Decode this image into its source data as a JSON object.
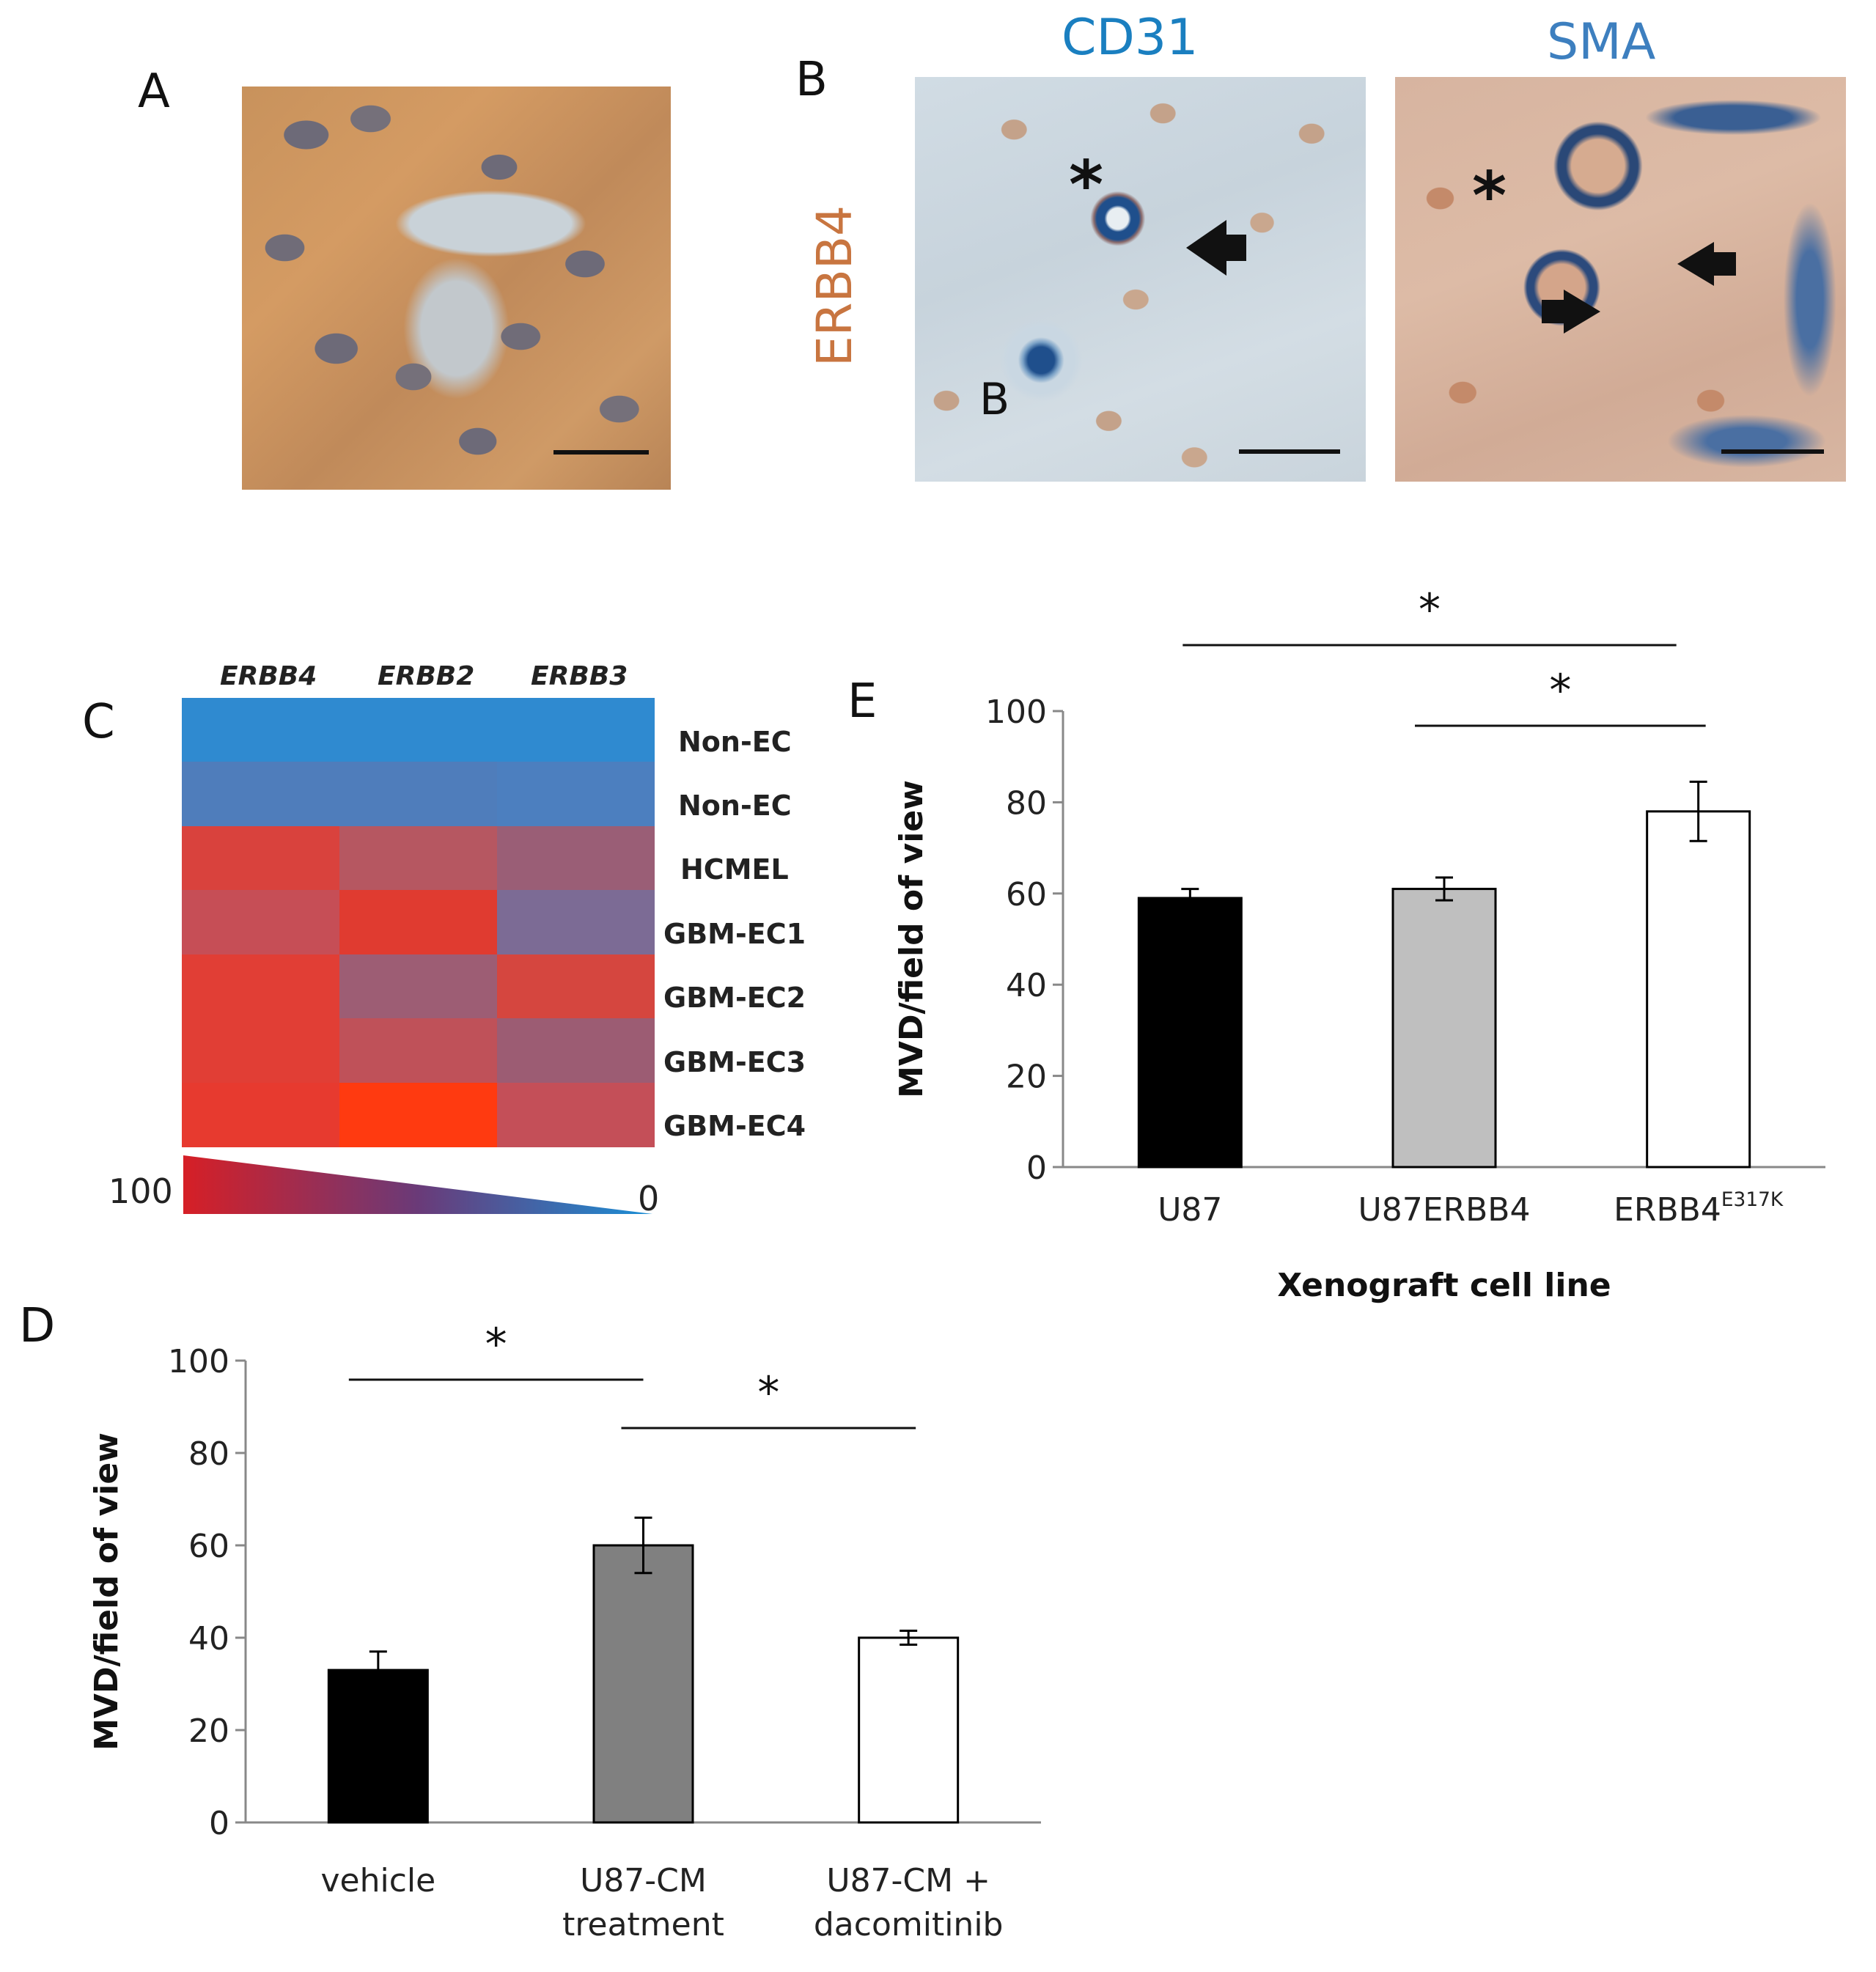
{
  "panels": {
    "a": {
      "letter": "A"
    },
    "b": {
      "letter": "B",
      "row_label": "ERBB4",
      "col1_label": "CD31",
      "col2_label": "SMA",
      "inset_letter": "B"
    },
    "c": {
      "letter": "C"
    },
    "d": {
      "letter": "D"
    },
    "e": {
      "letter": "E"
    }
  },
  "colors": {
    "cd31_label": "#1a7fc0",
    "sma_label": "#3d7fbf",
    "erbb4_label": "#c87540",
    "bar_black": "#000000",
    "bar_grey_light": "#bfbfbf",
    "bar_grey_dark": "#808080",
    "bar_white": "#ffffff"
  },
  "heatmap": {
    "columns": [
      "ERBB4",
      "ERBB2",
      "ERBB3"
    ],
    "rows": [
      "Non-EC",
      "Non-EC",
      "HCMEL",
      "GBM-EC1",
      "GBM-EC2",
      "GBM-EC3",
      "GBM-EC4"
    ],
    "cells": [
      [
        "#2f8ad0",
        "#2f8ad0",
        "#2f8ad0"
      ],
      [
        "#4f7dbb",
        "#4f7dbb",
        "#4c7fbf"
      ],
      [
        "#d9423d",
        "#b65761",
        "#9a5e76"
      ],
      [
        "#c64e56",
        "#e03b30",
        "#7c6b95"
      ],
      [
        "#e13e35",
        "#9d5d74",
        "#d5463f"
      ],
      [
        "#e13e35",
        "#bf5159",
        "#9c5c73"
      ],
      [
        "#e73a2f",
        "#ff3a10",
        "#c44f58"
      ]
    ],
    "scale_max": "100",
    "scale_min": "0"
  },
  "chart_data": [
    {
      "id": "E",
      "type": "bar",
      "categories": [
        "U87",
        "U87ERBB4",
        "ERBB4"
      ],
      "category_superscripts": [
        "",
        "",
        "E317K"
      ],
      "values": [
        59,
        61,
        78
      ],
      "errors": [
        2,
        2.5,
        6.5
      ],
      "bar_colors": [
        "#000000",
        "#bfbfbf",
        "#ffffff"
      ],
      "ylabel": "MVD/field of view",
      "xlabel": "Xenograft cell line",
      "ylim": [
        0,
        100
      ],
      "yticks": [
        "0",
        "20",
        "40",
        "60",
        "80",
        "100"
      ],
      "significance": [
        {
          "from": 0,
          "to": 2,
          "label": "*"
        },
        {
          "from": 1,
          "to": 2,
          "label": "*"
        }
      ]
    },
    {
      "id": "D",
      "type": "bar",
      "categories": [
        "vehicle",
        "U87-CM treatment",
        "U87-CM + dacomitinib"
      ],
      "category_lines": [
        [
          "vehicle"
        ],
        [
          "U87-CM",
          "treatment"
        ],
        [
          "U87-CM +",
          "dacomitinib"
        ]
      ],
      "values": [
        33,
        60,
        40
      ],
      "errors": [
        4,
        6,
        1.5
      ],
      "bar_colors": [
        "#000000",
        "#808080",
        "#ffffff"
      ],
      "ylabel": "MVD/field of view",
      "xlabel": "",
      "ylim": [
        0,
        100
      ],
      "yticks": [
        "0",
        "20",
        "40",
        "60",
        "80",
        "100"
      ],
      "significance": [
        {
          "from": 0,
          "to": 1,
          "label": "*"
        },
        {
          "from": 1,
          "to": 2,
          "label": "*"
        }
      ]
    }
  ]
}
